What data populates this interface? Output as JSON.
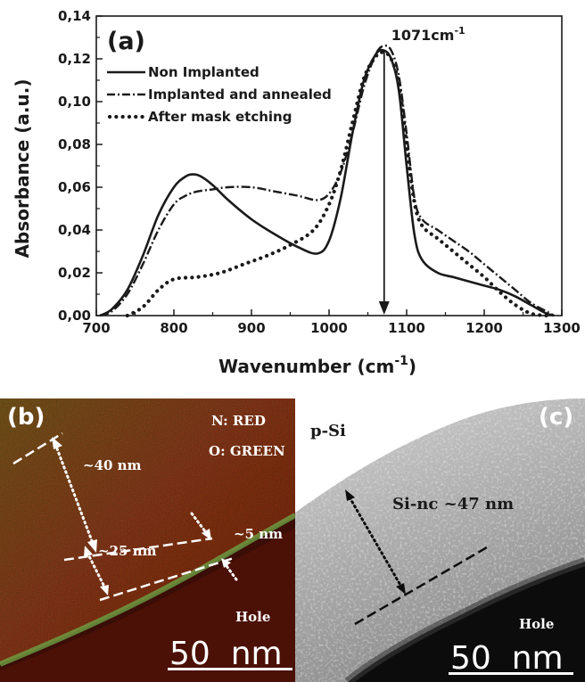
{
  "chart_data": [
    {
      "type": "line",
      "panel_label": "(a)",
      "xlabel": "Wavenumber (cm",
      "xlabel_sup": "-1",
      "xlabel_close": ")",
      "ylabel": "Absorbance (a.u.)",
      "xlim": [
        700,
        1300
      ],
      "ylim": [
        0.0,
        0.14
      ],
      "x_ticks": [
        700,
        800,
        900,
        1000,
        1100,
        1200,
        1300
      ],
      "x_tick_labels": [
        "700",
        "800",
        "900",
        "1000",
        "1100",
        "1200",
        "1300"
      ],
      "y_ticks": [
        0.0,
        0.02,
        0.04,
        0.06,
        0.08,
        0.1,
        0.12,
        0.14
      ],
      "y_tick_labels": [
        "0,00",
        "0,02",
        "0,04",
        "0,06",
        "0,08",
        "0,10",
        "0,12",
        "0,14"
      ],
      "grid": false,
      "legend_position": "upper-left",
      "annotation": {
        "text": "1071cm",
        "sup": "-1",
        "x": 1071,
        "y_top": 0.125,
        "y_bottom": 0.0
      },
      "series": [
        {
          "name": "Non Implanted",
          "style": "solid",
          "x": [
            705,
            720,
            740,
            760,
            780,
            800,
            815,
            825,
            835,
            850,
            870,
            900,
            930,
            960,
            985,
            1000,
            1015,
            1030,
            1045,
            1060,
            1070,
            1080,
            1090,
            1100,
            1110,
            1120,
            1140,
            1160,
            1180,
            1200,
            1220,
            1240,
            1260,
            1280,
            1290
          ],
          "y": [
            0.0,
            0.003,
            0.012,
            0.028,
            0.047,
            0.06,
            0.065,
            0.066,
            0.065,
            0.061,
            0.054,
            0.045,
            0.038,
            0.032,
            0.029,
            0.035,
            0.055,
            0.085,
            0.11,
            0.122,
            0.124,
            0.12,
            0.105,
            0.07,
            0.038,
            0.026,
            0.02,
            0.018,
            0.016,
            0.014,
            0.012,
            0.009,
            0.005,
            0.001,
            0.0
          ]
        },
        {
          "name": "Implanted and annealed",
          "style": "dashdot",
          "x": [
            705,
            720,
            740,
            760,
            780,
            800,
            815,
            830,
            850,
            870,
            900,
            930,
            960,
            985,
            1000,
            1015,
            1030,
            1045,
            1060,
            1070,
            1080,
            1090,
            1100,
            1110,
            1120,
            1140,
            1160,
            1180,
            1200,
            1220,
            1240,
            1260,
            1280,
            1290
          ],
          "y": [
            0.0,
            0.002,
            0.01,
            0.024,
            0.04,
            0.052,
            0.056,
            0.058,
            0.059,
            0.06,
            0.06,
            0.058,
            0.056,
            0.054,
            0.057,
            0.067,
            0.085,
            0.107,
            0.122,
            0.126,
            0.124,
            0.112,
            0.085,
            0.055,
            0.045,
            0.04,
            0.035,
            0.03,
            0.024,
            0.018,
            0.012,
            0.006,
            0.002,
            0.0
          ]
        },
        {
          "name": "After mask etching",
          "style": "dotted",
          "x": [
            740,
            760,
            780,
            800,
            830,
            860,
            890,
            920,
            950,
            980,
            1000,
            1015,
            1030,
            1045,
            1060,
            1070,
            1080,
            1090,
            1100,
            1110,
            1120,
            1140,
            1160,
            1180,
            1200,
            1220,
            1240,
            1260,
            1280
          ],
          "y": [
            0.0,
            0.004,
            0.012,
            0.017,
            0.018,
            0.02,
            0.024,
            0.028,
            0.033,
            0.04,
            0.052,
            0.068,
            0.09,
            0.111,
            0.121,
            0.123,
            0.12,
            0.108,
            0.08,
            0.053,
            0.042,
            0.036,
            0.03,
            0.024,
            0.018,
            0.011,
            0.005,
            0.001,
            0.0
          ]
        }
      ]
    }
  ],
  "panel_b": {
    "label": "(b)",
    "legend_n": "N: RED",
    "legend_o": "O: GREEN",
    "dim_40": "~40 nm",
    "dim_25": "~25 nm",
    "dim_5": "~5 nm",
    "hole": "Hole",
    "scale": "50  nm"
  },
  "panel_c": {
    "label": "(c)",
    "psi": "p-Si",
    "sinc": "Si-nc ~47 nm",
    "hole": "Hole",
    "scale": "50  nm"
  },
  "colors": {
    "ink": "#1a1a1a",
    "eds_red": "#8a2a18",
    "eds_green": "#3c7a22",
    "eds_dark": "#2e0a04",
    "tem_light": "#b4b4b4",
    "tem_dark": "#0a0a0a"
  }
}
